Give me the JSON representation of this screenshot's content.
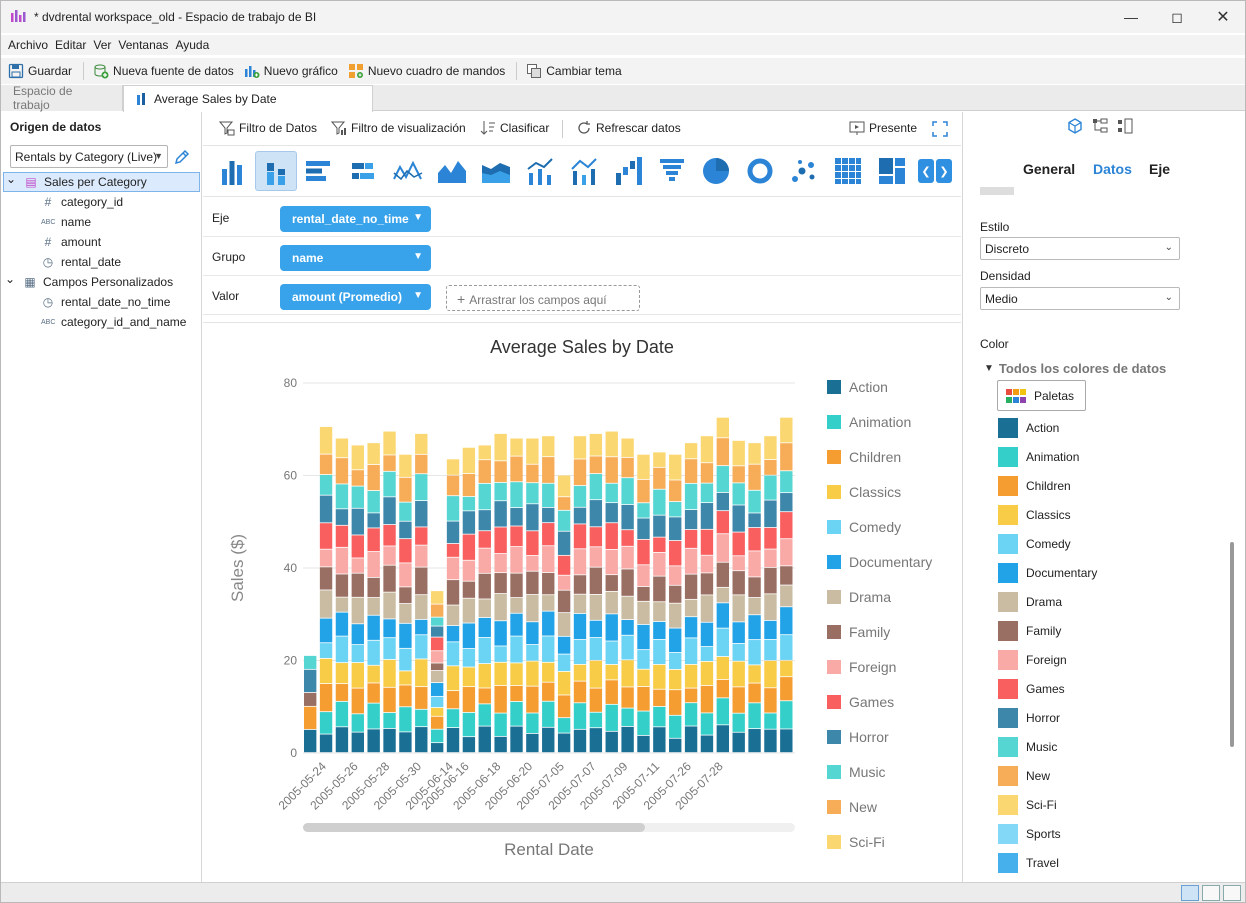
{
  "window": {
    "title": "* dvdrental workspace_old - Espacio de trabajo de BI"
  },
  "menu": [
    "Archivo",
    "Editar",
    "Ver",
    "Ventanas",
    "Ayuda"
  ],
  "toolbar": {
    "save": "Guardar",
    "new_source": "Nueva fuente de datos",
    "new_chart": "Nuevo gráfico",
    "new_dashboard": "Nuevo cuadro de mandos",
    "change_theme": "Cambiar tema"
  },
  "tabs": {
    "workspace": "Espacio de trabajo",
    "chart": "Average Sales by Date"
  },
  "left": {
    "header": "Origen de datos",
    "datasource": "Rentals by Category (Live)",
    "tree": [
      {
        "label": "Sales per Category",
        "icon": "table-icon",
        "level": 0,
        "selected": true
      },
      {
        "label": "category_id",
        "icon": "hash-icon",
        "level": 1
      },
      {
        "label": "name",
        "icon": "abc-icon",
        "level": 1
      },
      {
        "label": "amount",
        "icon": "hash-icon",
        "level": 1
      },
      {
        "label": "rental_date",
        "icon": "clock-icon",
        "level": 1
      },
      {
        "label": "Campos Personalizados",
        "icon": "custom-fields-icon",
        "level": 0
      },
      {
        "label": "rental_date_no_time",
        "icon": "clock-icon",
        "level": 1
      },
      {
        "label": "category_id_and_name",
        "icon": "abc-icon",
        "level": 1
      }
    ]
  },
  "center_toolbar": {
    "data_filter": "Filtro de Datos",
    "vis_filter": "Filtro de visualización",
    "sort": "Clasificar",
    "refresh": "Refrescar datos",
    "present": "Presente"
  },
  "shelves": {
    "axis_label": "Eje",
    "axis_value": "rental_date_no_time",
    "group_label": "Grupo",
    "group_value": "name",
    "value_label": "Valor",
    "value_value": "amount (Promedio)",
    "drop_hint": "Arrastrar los campos aquí"
  },
  "right": {
    "tab_general": "General",
    "tab_data": "Datos",
    "tab_axis": "Eje",
    "style_label": "Estilo",
    "style_value": "Discreto",
    "density_label": "Densidad",
    "density_value": "Medio",
    "color_label": "Color",
    "all_colors": "Todos los colores de datos",
    "palettes": "Paletas",
    "colors": [
      {
        "name": "Action",
        "color": "#1a6f94"
      },
      {
        "name": "Animation",
        "color": "#35cfc9"
      },
      {
        "name": "Children",
        "color": "#f59d30"
      },
      {
        "name": "Classics",
        "color": "#f8cc47"
      },
      {
        "name": "Comedy",
        "color": "#6bd4f4"
      },
      {
        "name": "Documentary",
        "color": "#22a3e8"
      },
      {
        "name": "Drama",
        "color": "#c9bca2"
      },
      {
        "name": "Family",
        "color": "#9a6f63"
      },
      {
        "name": "Foreign",
        "color": "#f9a9a6"
      },
      {
        "name": "Games",
        "color": "#f95f5f"
      },
      {
        "name": "Horror",
        "color": "#3d87ab"
      },
      {
        "name": "Music",
        "color": "#55d6d3"
      },
      {
        "name": "New",
        "color": "#f7ad58"
      },
      {
        "name": "Sci-Fi",
        "color": "#fad770"
      },
      {
        "name": "Sports",
        "color": "#83d8f7"
      },
      {
        "name": "Travel",
        "color": "#45b0ec"
      }
    ]
  },
  "chart_data": {
    "type": "bar",
    "stacked": true,
    "title": "Average Sales by Date",
    "xlabel": "Rental Date",
    "ylabel": "Sales ($)",
    "ylim": [
      0,
      80
    ],
    "yticks": [
      0,
      20,
      40,
      60,
      80
    ],
    "x_tick_labels": [
      "2005-05-24",
      "2005-05-26",
      "2005-05-28",
      "2005-05-30",
      "2005-06-14",
      "2005-06-16",
      "2005-06-18",
      "2005-06-20",
      "2005-07-05",
      "2005-07-07",
      "2005-07-09",
      "2005-07-11",
      "2005-07-26",
      "2005-07-28"
    ],
    "legend_position": "right",
    "legend": [
      "Action",
      "Animation",
      "Children",
      "Classics",
      "Comedy",
      "Documentary",
      "Drama",
      "Family",
      "Foreign",
      "Games",
      "Horror",
      "Music",
      "New",
      "Sci-Fi"
    ],
    "bar_totals": [
      21,
      70.5,
      68,
      66.5,
      67,
      69.5,
      64.5,
      69,
      35,
      63.5,
      66,
      66.5,
      69,
      68,
      68,
      68.5,
      60,
      68.5,
      69,
      69.5,
      68,
      64.5,
      65,
      64.5,
      67,
      68.5,
      72.5,
      67.5,
      67,
      68.5,
      72.5
    ],
    "first_bar_segments": [
      {
        "category": "Action",
        "value": 5
      },
      {
        "category": "Children",
        "value": 5
      },
      {
        "category": "Family",
        "value": 3
      },
      {
        "category": "Horror",
        "value": 5
      },
      {
        "category": "Music",
        "value": 3
      }
    ]
  }
}
